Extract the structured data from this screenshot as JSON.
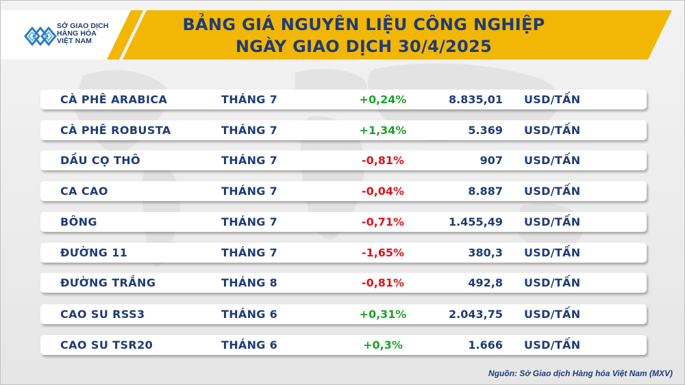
{
  "logo": {
    "line1": "SỞ GIAO DỊCH",
    "line2": "HÀNG HÓA",
    "line3": "VIỆT NAM",
    "icon": "mxv-logo-icon"
  },
  "title": {
    "line1": "BẢNG GIÁ NGUYÊN LIỆU CÔNG NGHIỆP",
    "line2": "NGÀY GIAO DỊCH 30/4/2025"
  },
  "colors": {
    "header_yellow": "#f2b705",
    "title_blue": "#1f3b78",
    "up_green": "#1aa32a",
    "down_red": "#e0121a"
  },
  "rows": [
    {
      "name": "CÀ PHÊ ARABICA",
      "month": "THÁNG 7",
      "change": "+0,24%",
      "direction": "up",
      "price": "8.835,01",
      "unit": "USD/TẤN"
    },
    {
      "name": "CÀ PHÊ ROBUSTA",
      "month": "THÁNG 7",
      "change": "+1,34%",
      "direction": "up",
      "price": "5.369",
      "unit": "USD/TẤN"
    },
    {
      "name": "DẦU CỌ THÔ",
      "month": "THÁNG 7",
      "change": "-0,81%",
      "direction": "down",
      "price": "907",
      "unit": "USD/TẤN"
    },
    {
      "name": "CA CAO",
      "month": "THÁNG 7",
      "change": "-0,04%",
      "direction": "down",
      "price": "8.887",
      "unit": "USD/TẤN"
    },
    {
      "name": "BÔNG",
      "month": "THÁNG 7",
      "change": "-0,71%",
      "direction": "down",
      "price": "1.455,49",
      "unit": "USD/TẤN"
    },
    {
      "name": "ĐƯỜNG 11",
      "month": "THÁNG 7",
      "change": "-1,65%",
      "direction": "down",
      "price": "380,3",
      "unit": "USD/TẤN"
    },
    {
      "name": "ĐƯỜNG TRẮNG",
      "month": "THÁNG 8",
      "change": "-0,81%",
      "direction": "down",
      "price": "492,8",
      "unit": "USD/TẤN"
    },
    {
      "name": "CAO SU RSS3",
      "month": "THÁNG 6",
      "change": "+0,31%",
      "direction": "up",
      "price": "2.043,75",
      "unit": "USD/TẤN"
    },
    {
      "name": "CAO SU TSR20",
      "month": "THÁNG 6",
      "change": "+0,3%",
      "direction": "up",
      "price": "1.666",
      "unit": "USD/TẤN"
    }
  ],
  "source": "Nguồn: Sở Giao dịch Hàng hóa Việt Nam (MXV)"
}
